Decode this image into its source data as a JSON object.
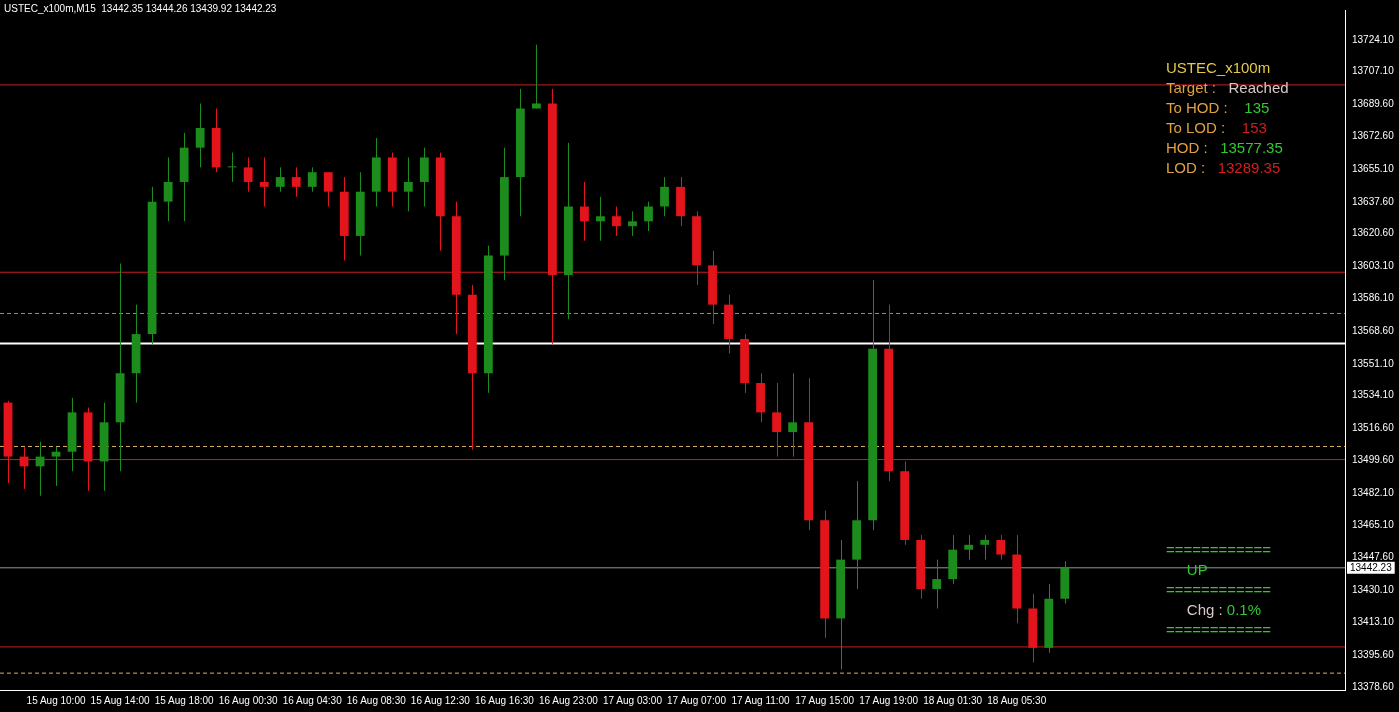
{
  "chart_data": {
    "type": "candlestick",
    "title": "USTEC_x100m,M15  13442.35 13444.26 13439.92 13442.23",
    "categories": [
      null,
      null,
      null,
      "15 Aug 10:00",
      null,
      null,
      null,
      "15 Aug 14:00",
      null,
      null,
      null,
      "15 Aug 18:00",
      null,
      null,
      null,
      "16 Aug 00:30",
      null,
      null,
      null,
      "16 Aug 04:30",
      null,
      null,
      null,
      "16 Aug 08:30",
      null,
      null,
      null,
      "16 Aug 12:30",
      null,
      null,
      null,
      "16 Aug 16:30",
      null,
      null,
      null,
      "16 Aug 23:00",
      null,
      null,
      null,
      "17 Aug 03:00",
      null,
      null,
      null,
      "17 Aug 07:00",
      null,
      null,
      null,
      "17 Aug 11:00",
      null,
      null,
      null,
      "17 Aug 15:00",
      null,
      null,
      null,
      "17 Aug 19:00",
      null,
      null,
      null,
      "18 Aug 01:30",
      null,
      null,
      null,
      "18 Aug 05:30",
      null,
      null,
      null,
      null,
      null,
      null,
      null,
      null,
      null,
      null,
      null,
      null,
      null,
      null,
      null,
      null,
      null,
      null,
      null,
      null
    ],
    "ohlc": [
      [
        13530.4,
        13531.4,
        13487.5,
        13501.6
      ],
      [
        13501.6,
        13506.8,
        13484.3,
        13496.4
      ],
      [
        13496.4,
        13509.5,
        13480.7,
        13501.6
      ],
      [
        13501.6,
        13506.8,
        13485.9,
        13504.2
      ],
      [
        13504.2,
        13533.0,
        13493.8,
        13525.2
      ],
      [
        13525.2,
        13527.8,
        13483.3,
        13499.0
      ],
      [
        13499.0,
        13530.4,
        13483.3,
        13519.9
      ],
      [
        13519.9,
        13604.7,
        13493.8,
        13546.1
      ],
      [
        13546.1,
        13582.7,
        13530.4,
        13567.0
      ],
      [
        13567.0,
        13645.6,
        13561.8,
        13637.7
      ],
      [
        13637.7,
        13661.3,
        13627.2,
        13648.2
      ],
      [
        13648.2,
        13674.4,
        13627.2,
        13666.5
      ],
      [
        13666.5,
        13690.1,
        13656.0,
        13677.0
      ],
      [
        13677.0,
        13687.4,
        13653.4,
        13656.0
      ],
      [
        13656.0,
        13663.9,
        13648.2,
        13656.0
      ],
      [
        13656.0,
        13661.3,
        13643.0,
        13648.2
      ],
      [
        13648.2,
        13661.3,
        13635.1,
        13645.6
      ],
      [
        13645.6,
        13656.0,
        13643.0,
        13650.8
      ],
      [
        13650.8,
        13656.0,
        13640.3,
        13645.6
      ],
      [
        13645.6,
        13656.0,
        13643.0,
        13653.4
      ],
      [
        13653.4,
        13653.4,
        13635.1,
        13643.0
      ],
      [
        13643.0,
        13650.8,
        13606.3,
        13619.4
      ],
      [
        13619.4,
        13653.4,
        13608.9,
        13643.0
      ],
      [
        13643.0,
        13671.7,
        13635.1,
        13661.3
      ],
      [
        13661.3,
        13663.9,
        13635.1,
        13643.0
      ],
      [
        13643.0,
        13661.3,
        13632.5,
        13648.2
      ],
      [
        13648.2,
        13666.5,
        13635.1,
        13661.3
      ],
      [
        13661.3,
        13663.9,
        13611.5,
        13629.9
      ],
      [
        13629.9,
        13637.7,
        13567.0,
        13588.0
      ],
      [
        13588.0,
        13593.2,
        13505.3,
        13546.1
      ],
      [
        13546.1,
        13614.2,
        13535.6,
        13608.9
      ],
      [
        13608.9,
        13666.5,
        13595.8,
        13650.8
      ],
      [
        13650.8,
        13697.9,
        13629.9,
        13687.4
      ],
      [
        13687.4,
        13721.5,
        13687.4,
        13690.1
      ],
      [
        13690.1,
        13697.9,
        13561.8,
        13598.5
      ],
      [
        13598.5,
        13669.1,
        13574.9,
        13635.1
      ],
      [
        13635.1,
        13648.2,
        13616.8,
        13627.2
      ],
      [
        13627.2,
        13640.3,
        13616.8,
        13629.9
      ],
      [
        13629.9,
        13635.1,
        13619.4,
        13624.6
      ],
      [
        13624.6,
        13632.5,
        13619.4,
        13627.2
      ],
      [
        13627.2,
        13637.7,
        13622.0,
        13635.1
      ],
      [
        13635.1,
        13650.8,
        13629.9,
        13645.6
      ],
      [
        13645.6,
        13650.8,
        13624.6,
        13629.9
      ],
      [
        13629.9,
        13632.5,
        13593.2,
        13603.7
      ],
      [
        13603.7,
        13611.5,
        13572.3,
        13582.7
      ],
      [
        13582.7,
        13588.0,
        13556.6,
        13564.4
      ],
      [
        13564.4,
        13567.0,
        13535.6,
        13540.9
      ],
      [
        13540.9,
        13546.1,
        13519.9,
        13525.2
      ],
      [
        13525.2,
        13540.9,
        13501.6,
        13514.7
      ],
      [
        13514.7,
        13546.1,
        13501.6,
        13519.9
      ],
      [
        13519.9,
        13543.5,
        13462.3,
        13467.6
      ],
      [
        13467.6,
        13472.8,
        13404.8,
        13415.2
      ],
      [
        13415.2,
        13457.1,
        13388.0,
        13446.6
      ],
      [
        13446.6,
        13488.5,
        13430.9,
        13467.6
      ],
      [
        13467.6,
        13595.8,
        13462.3,
        13559.2
      ],
      [
        13559.2,
        13582.7,
        13488.5,
        13493.8
      ],
      [
        13493.8,
        13499.0,
        13454.5,
        13457.1
      ],
      [
        13457.1,
        13459.7,
        13425.7,
        13430.9
      ],
      [
        13430.9,
        13446.6,
        13420.5,
        13436.2
      ],
      [
        13436.2,
        13459.7,
        13433.6,
        13451.9
      ],
      [
        13451.9,
        13459.7,
        13446.6,
        13454.5
      ],
      [
        13454.5,
        13459.7,
        13446.6,
        13457.1
      ],
      [
        13457.1,
        13459.7,
        13446.6,
        13449.3
      ],
      [
        13449.3,
        13459.7,
        13412.6,
        13420.5
      ],
      [
        13420.5,
        13428.3,
        13391.7,
        13399.5
      ],
      [
        13399.5,
        13433.6,
        13396.9,
        13425.7
      ],
      [
        13425.7,
        13445.6,
        13423.1,
        13442.23
      ],
      null,
      null,
      null,
      null,
      null,
      null,
      null,
      null,
      null,
      null,
      null,
      null,
      null,
      null,
      null,
      null,
      null
    ],
    "colors": [
      "#e3141b",
      "#e3141b",
      "#1c8c1c",
      "#1c8c1c",
      "#1c8c1c",
      "#e3141b",
      "#1c8c1c",
      "#1c8c1c",
      "#1c8c1c",
      "#1c8c1c",
      "#1c8c1c",
      "#1c8c1c",
      "#1c8c1c",
      "#e3141b",
      "#1c8c1c",
      "#e3141b",
      "#e3141b",
      "#1c8c1c",
      "#e3141b",
      "#1c8c1c",
      "#e3141b",
      "#e3141b",
      "#1c8c1c",
      "#1c8c1c",
      "#e3141b",
      "#1c8c1c",
      "#1c8c1c",
      "#e3141b",
      "#e3141b",
      "#e3141b",
      "#1c8c1c",
      "#1c8c1c",
      "#1c8c1c",
      "#1c8c1c",
      "#e3141b",
      "#1c8c1c",
      "#e3141b",
      "#1c8c1c",
      "#e3141b",
      "#1c8c1c",
      "#1c8c1c",
      "#1c8c1c",
      "#e3141b",
      "#e3141b",
      "#e3141b",
      "#e3141b",
      "#e3141b",
      "#e3141b",
      "#e3141b",
      "#1c8c1c",
      "#e3141b",
      "#e3141b",
      "#1c8c1c",
      "#1c8c1c",
      "#1c8c1c",
      "#e3141b",
      "#e3141b",
      "#e3141b",
      "#1c8c1c",
      "#1c8c1c",
      "#1c8c1c",
      "#1c8c1c",
      "#e3141b",
      "#e3141b",
      "#e3141b",
      "#1c8c1c",
      "#1c8c1c",
      null,
      null,
      null,
      null,
      null,
      null,
      null,
      null,
      null,
      null,
      null,
      null,
      null,
      null,
      null,
      null,
      null
    ],
    "ylim": [
      13377,
      13740
    ],
    "yticks": [
      {
        "value": 13378.6,
        "label": "13378.60"
      },
      {
        "value": 13395.6,
        "label": "13395.60"
      },
      {
        "value": 13413.1,
        "label": "13413.10"
      },
      {
        "value": 13430.1,
        "label": "13430.10"
      },
      {
        "value": 13447.6,
        "label": "13447.60"
      },
      {
        "value": 13465.1,
        "label": "13465.10"
      },
      {
        "value": 13482.1,
        "label": "13482.10"
      },
      {
        "value": 13499.6,
        "label": "13499.60"
      },
      {
        "value": 13516.6,
        "label": "13516.60"
      },
      {
        "value": 13534.1,
        "label": "13534.10"
      },
      {
        "value": 13551.1,
        "label": "13551.10"
      },
      {
        "value": 13568.6,
        "label": "13568.60"
      },
      {
        "value": 13586.1,
        "label": "13586.10"
      },
      {
        "value": 13603.1,
        "label": "13603.10"
      },
      {
        "value": 13620.6,
        "label": "13620.60"
      },
      {
        "value": 13637.6,
        "label": "13637.60"
      },
      {
        "value": 13655.1,
        "label": "13655.10"
      },
      {
        "value": 13672.6,
        "label": "13672.60"
      },
      {
        "value": 13689.6,
        "label": "13689.60"
      },
      {
        "value": 13707.1,
        "label": "13707.10"
      },
      {
        "value": 13724.1,
        "label": "13724.10"
      }
    ],
    "ref_lines": [
      {
        "axis": "y",
        "value": 13700,
        "color": "#c81e1e"
      },
      {
        "axis": "y",
        "value": 13600,
        "color": "#c81e1e"
      },
      {
        "axis": "y",
        "value": 13500,
        "color": "#c81e1e"
      },
      {
        "axis": "y",
        "value": 13400,
        "color": "#c81e1e"
      },
      {
        "axis": "y",
        "value": 13562,
        "color": "#ffffff"
      },
      {
        "axis": "y",
        "value": 13578,
        "color": "#3cc83c",
        "line_style": "dashed"
      },
      {
        "axis": "y",
        "value": 13507,
        "color": "#d8b060",
        "line_style": "dashed"
      },
      {
        "axis": "y",
        "value": 13386,
        "color": "#d8b060",
        "line_style": "dashed"
      },
      {
        "axis": "y",
        "value": 13442.23,
        "label": "13442.23",
        "color": "#8c96a0"
      }
    ],
    "annotations": [
      "USTEC_x100m",
      "Target :",
      "Reached",
      "To HOD :",
      "135",
      "To LOD :",
      "153",
      "HOD :",
      "13577.35",
      "LOD :",
      "13289.35",
      "============",
      "UP",
      "============",
      "Chg :",
      "0.1%",
      "============"
    ],
    "grid": false,
    "legend": false
  }
}
